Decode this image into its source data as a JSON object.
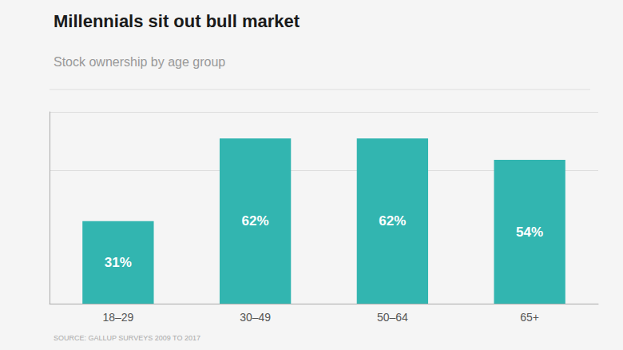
{
  "chart_data": {
    "type": "bar",
    "title": "Millennials sit out bull market",
    "subtitle": "Stock ownership by age group",
    "source": "SOURCE: GALLUP SURVEYS 2009 TO 2017",
    "categories": [
      "18–29",
      "30–49",
      "50–64",
      "65+"
    ],
    "values": [
      31,
      62,
      62,
      54
    ],
    "value_labels": [
      "31%",
      "62%",
      "62%",
      "54%"
    ],
    "data_labels": true,
    "color": "#32b5b0",
    "ylim": [
      0,
      72
    ],
    "yticks": [
      0,
      50
    ],
    "grid": true,
    "tick_labels": "x"
  }
}
